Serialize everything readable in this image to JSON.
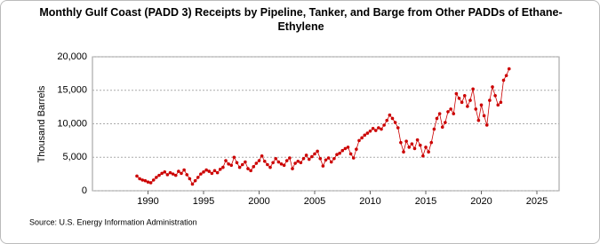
{
  "chart_data": {
    "type": "line",
    "title": "Monthly Gulf Coast (PADD 3) Receipts by Pipeline, Tanker, and Barge from Other PADDs of Ethane-Ethylene",
    "y_label": "Thousand Barrels",
    "source": "Source: U.S. Energy Information Administration",
    "x": [
      1989,
      1989.25,
      1989.5,
      1989.75,
      1990,
      1990.25,
      1990.5,
      1990.75,
      1991,
      1991.25,
      1991.5,
      1991.75,
      1992,
      1992.25,
      1992.5,
      1992.75,
      1993,
      1993.25,
      1993.5,
      1993.75,
      1994,
      1994.25,
      1994.5,
      1994.75,
      1995,
      1995.25,
      1995.5,
      1995.75,
      1996,
      1996.25,
      1996.5,
      1996.75,
      1997,
      1997.25,
      1997.5,
      1997.75,
      1998,
      1998.25,
      1998.5,
      1998.75,
      1999,
      1999.25,
      1999.5,
      1999.75,
      2000,
      2000.25,
      2000.5,
      2000.75,
      2001,
      2001.25,
      2001.5,
      2001.75,
      2002,
      2002.25,
      2002.5,
      2002.75,
      2003,
      2003.25,
      2003.5,
      2003.75,
      2004,
      2004.25,
      2004.5,
      2004.75,
      2005,
      2005.25,
      2005.5,
      2005.75,
      2006,
      2006.25,
      2006.5,
      2006.75,
      2007,
      2007.25,
      2007.5,
      2007.75,
      2008,
      2008.25,
      2008.5,
      2008.75,
      2009,
      2009.25,
      2009.5,
      2009.75,
      2010,
      2010.25,
      2010.5,
      2010.75,
      2011,
      2011.25,
      2011.5,
      2011.75,
      2012,
      2012.25,
      2012.5,
      2012.75,
      2013,
      2013.25,
      2013.5,
      2013.75,
      2014,
      2014.25,
      2014.5,
      2014.75,
      2015,
      2015.25,
      2015.5,
      2015.75,
      2016,
      2016.25,
      2016.5,
      2016.75,
      2017,
      2017.25,
      2017.5,
      2017.75,
      2018,
      2018.25,
      2018.5,
      2018.75,
      2019,
      2019.25,
      2019.5,
      2019.75,
      2020,
      2020.25,
      2020.5,
      2020.75,
      2021,
      2021.25,
      2021.5,
      2021.75,
      2022,
      2022.25,
      2022.5
    ],
    "series": [
      {
        "name": "Receipts",
        "color": "#cc0000",
        "values": [
          2200,
          1800,
          1600,
          1500,
          1300,
          1200,
          1600,
          2000,
          2300,
          2600,
          2800,
          2400,
          2700,
          2500,
          2300,
          2900,
          2600,
          3100,
          2400,
          1800,
          1000,
          1500,
          2000,
          2500,
          2800,
          3100,
          2900,
          2600,
          3000,
          2700,
          3200,
          3500,
          4500,
          4000,
          3800,
          5000,
          4200,
          3500,
          3900,
          4300,
          3300,
          3000,
          3600,
          4100,
          4500,
          5200,
          4400,
          3900,
          3500,
          4200,
          4800,
          4300,
          4000,
          3800,
          4500,
          4900,
          3300,
          4100,
          4400,
          4200,
          4800,
          5300,
          4700,
          5100,
          5500,
          5900,
          4800,
          3700,
          4600,
          4900,
          4300,
          4800,
          5400,
          5600,
          6000,
          6300,
          6500,
          5500,
          4900,
          6200,
          7500,
          7900,
          8300,
          8600,
          8900,
          9300,
          9000,
          9400,
          9200,
          9800,
          10500,
          11300,
          10800,
          10200,
          9400,
          7200,
          5800,
          7400,
          6500,
          7000,
          6300,
          7600,
          6800,
          5200,
          6500,
          5800,
          7200,
          9200,
          10800,
          11500,
          9500,
          10200,
          11800,
          12200,
          11500,
          14500,
          13800,
          13200,
          14200,
          12600,
          13500,
          15200,
          12200,
          10500,
          12800,
          11200,
          9800,
          13500,
          15500,
          14200,
          12800,
          13200,
          16500,
          17200,
          18200
        ]
      }
    ],
    "xlim": [
      1985,
      2027
    ],
    "xticks": [
      1990,
      1995,
      2000,
      2005,
      2010,
      2015,
      2020,
      2025
    ],
    "ylim": [
      0,
      20000
    ],
    "yticks": [
      0,
      {
        "value": 5000,
        "label": "5,000"
      },
      {
        "value": 10000,
        "label": "10,000"
      },
      {
        "value": 15000,
        "label": "15,000"
      },
      {
        "value": 20000,
        "label": "20,000"
      }
    ],
    "grid": true
  }
}
